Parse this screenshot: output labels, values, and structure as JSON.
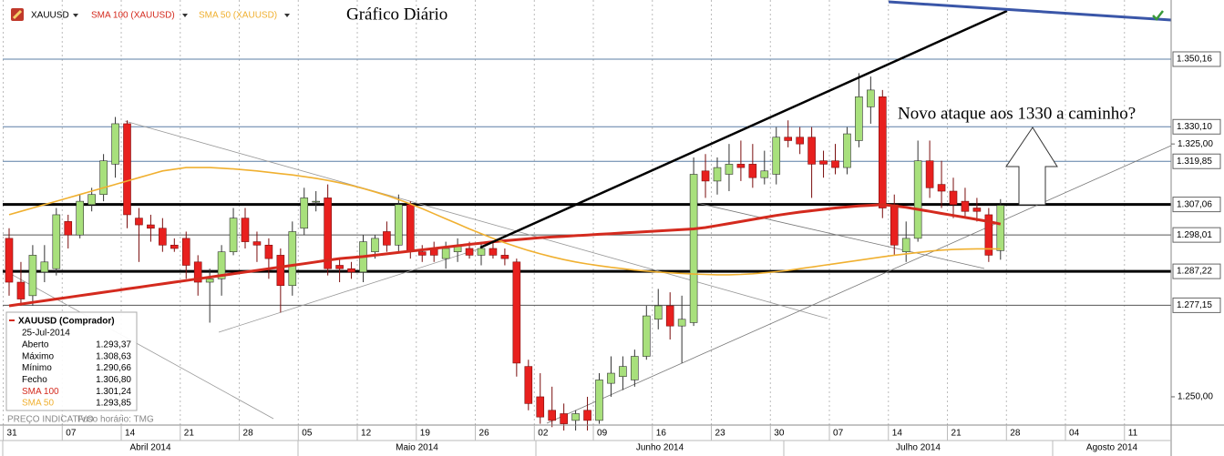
{
  "chart_data": {
    "type": "candlestick",
    "title": "Gráfico Diário",
    "symbol": "XAUUSD",
    "annotation": "Novo ataque aos 1330 a caminho?",
    "categories": [
      "31",
      null,
      null,
      null,
      null,
      "07",
      null,
      null,
      null,
      null,
      "14",
      null,
      null,
      null,
      null,
      "21",
      null,
      null,
      null,
      null,
      "28",
      null,
      null,
      null,
      null,
      "05",
      null,
      null,
      null,
      null,
      "12",
      null,
      null,
      null,
      null,
      "19",
      null,
      null,
      null,
      null,
      "26",
      null,
      null,
      null,
      null,
      "02",
      null,
      null,
      null,
      null,
      "09",
      null,
      null,
      null,
      null,
      "16",
      null,
      null,
      null,
      null,
      "23",
      null,
      null,
      null,
      null,
      "30",
      null,
      null,
      null,
      null,
      "07",
      null,
      null,
      null,
      null,
      "14",
      null,
      null,
      null,
      null,
      "21",
      null,
      null,
      null,
      null,
      "28",
      null,
      null,
      null,
      null,
      "04",
      null,
      null,
      null,
      null,
      "11",
      null,
      null
    ],
    "open": [
      1297,
      1284,
      1280,
      1287,
      1288,
      1302,
      1298,
      1307,
      1310,
      1319,
      1331,
      1303,
      1301,
      1300,
      1295,
      1297,
      1290,
      1284,
      1285,
      1293,
      1303,
      1296,
      1295,
      1292,
      1283,
      1300,
      1308,
      1309,
      1289,
      1288,
      1287,
      1293,
      1299,
      1295,
      1307,
      1293,
      1294,
      1291,
      1293,
      1294,
      1292,
      1294,
      1292,
      1290,
      1259,
      1250,
      1246,
      1245,
      1243,
      1246,
      1243,
      1254,
      1256,
      1255,
      1262,
      1273,
      1277,
      1271,
      1272,
      1317,
      1314,
      1316,
      1319,
      1319,
      1315,
      1316,
      1327,
      1327,
      1327,
      1320,
      1320,
      1318,
      1326,
      1336,
      1339,
      1307,
      1293,
      1297,
      1320,
      1313,
      1311,
      1308,
      1306,
      1304,
      1293.37,
      null,
      null,
      null,
      null,
      null,
      null,
      null,
      null,
      null,
      null,
      null,
      null,
      null
    ],
    "high": [
      1300,
      1290,
      1295,
      1295,
      1306,
      1304,
      1310,
      1312,
      1322,
      1333,
      1332,
      1306,
      1304,
      1303,
      1297,
      1299,
      1292,
      1288,
      1295,
      1306,
      1306,
      1299,
      1297,
      1294,
      1302,
      1312,
      1311,
      1313,
      1291,
      1290,
      1298,
      1298,
      1302,
      1310,
      1308,
      1295,
      1296,
      1296,
      1297,
      1296,
      1296,
      1296,
      1294,
      1291,
      1261,
      1257,
      1253,
      1248,
      1246,
      1250,
      1257,
      1262,
      1262,
      1264,
      1277,
      1282,
      1281,
      1280,
      1321,
      1322,
      1321,
      1325,
      1326,
      1325,
      1323,
      1330,
      1332,
      1330,
      1330,
      1323,
      1325,
      1330,
      1346,
      1345,
      1341,
      1310,
      1302,
      1326,
      1326,
      1320,
      1315,
      1312,
      1309,
      1306,
      1308.63,
      null,
      null,
      null,
      null,
      null,
      null,
      null,
      null,
      null,
      null,
      null,
      null,
      null
    ],
    "low": [
      1280,
      1277,
      1277,
      1284,
      1286,
      1294,
      1297,
      1305,
      1308,
      1315,
      1300,
      1290,
      1296,
      1293,
      1293,
      1285,
      1280,
      1272,
      1280,
      1292,
      1294,
      1290,
      1285,
      1275,
      1280,
      1298,
      1305,
      1286,
      1284,
      1285,
      1284,
      1291,
      1293,
      1293,
      1291,
      1290,
      1290,
      1288,
      1290,
      1291,
      1289,
      1291,
      1289,
      1256,
      1246,
      1242,
      1241,
      1240,
      1240,
      1240,
      1242,
      1250,
      1252,
      1253,
      1261,
      1270,
      1267,
      1260,
      1271,
      1309,
      1310,
      1311,
      1314,
      1312,
      1313,
      1313,
      1324,
      1322,
      1309,
      1315,
      1316,
      1316,
      1324,
      1331,
      1303,
      1292,
      1290,
      1296,
      1309,
      1306,
      1303,
      1303,
      1302,
      1290,
      1290.66,
      null,
      null,
      null,
      null,
      null,
      null,
      null,
      null,
      null,
      null,
      null,
      null,
      null
    ],
    "close": [
      1284,
      1279,
      1292,
      1290,
      1304,
      1298,
      1308,
      1310,
      1320,
      1331,
      1304,
      1301,
      1300,
      1295,
      1294,
      1289,
      1284,
      1285,
      1293,
      1303,
      1296,
      1295,
      1291,
      1283,
      1299,
      1309,
      1308,
      1288,
      1288,
      1287,
      1296,
      1297,
      1295,
      1307,
      1293,
      1292,
      1292,
      1294,
      1295,
      1292,
      1294,
      1292,
      1291,
      1260,
      1248,
      1244,
      1243,
      1242,
      1245,
      1243,
      1255,
      1257,
      1259,
      1262,
      1274,
      1277,
      1271,
      1273,
      1316,
      1314,
      1318,
      1319,
      1318,
      1315,
      1317,
      1327,
      1326,
      1325,
      1319,
      1319,
      1318,
      1328,
      1339,
      1341,
      1306,
      1295,
      1297,
      1320,
      1312,
      1311,
      1307,
      1305,
      1305,
      1292,
      1306.8,
      null,
      null,
      null,
      null,
      null,
      null,
      null,
      null,
      null,
      null,
      null,
      null,
      null
    ],
    "up_color": "#a8e07c",
    "down_color": "#e8201e",
    "series": [
      {
        "name": "SMA 100 (XAUUSD)",
        "color": "#d42a1e",
        "values": [
          1277,
          1277.5,
          1278,
          1278.5,
          1279,
          1279.5,
          1280,
          1280.5,
          1281,
          1281.5,
          1282,
          1282.5,
          1283,
          1283.5,
          1284,
          1284.5,
          1285,
          1285.5,
          1286,
          1286.5,
          1287,
          1287.5,
          1288,
          1288.5,
          1289,
          1289.5,
          1290,
          1290.5,
          1291,
          1291.3,
          1291.6,
          1292,
          1292.4,
          1292.8,
          1293.2,
          1293.6,
          1294,
          1294.4,
          1294.8,
          1295.2,
          1295.6,
          1296,
          1296.3,
          1296.6,
          1296.9,
          1297.2,
          1297.4,
          1297.6,
          1297.8,
          1298,
          1298.2,
          1298.4,
          1298.6,
          1298.8,
          1299,
          1299.2,
          1299.4,
          1299.6,
          1299.8,
          1300.2,
          1300.8,
          1301.4,
          1302,
          1302.6,
          1303.2,
          1303.8,
          1304.3,
          1304.8,
          1305.2,
          1305.6,
          1306,
          1306.3,
          1306.6,
          1306.8,
          1307,
          1306.6,
          1306.2,
          1305.6,
          1305,
          1304.4,
          1303.8,
          1303.2,
          1302.6,
          1302,
          1301.24,
          null,
          null,
          null,
          null,
          null,
          null,
          null,
          null,
          null,
          null,
          null,
          null,
          null
        ]
      },
      {
        "name": "SMA 50 (XAUUSD)",
        "color": "#f0b030",
        "values": [
          1304,
          1305,
          1306,
          1307,
          1308,
          1309,
          1310,
          1311,
          1312,
          1313,
          1314,
          1315,
          1316,
          1317,
          1317.5,
          1318,
          1318,
          1318,
          1317.8,
          1317.6,
          1317.3,
          1317,
          1316.6,
          1316.2,
          1315.8,
          1315.3,
          1314.8,
          1314.2,
          1313.5,
          1312.7,
          1311.8,
          1310.8,
          1309.7,
          1308.5,
          1307.2,
          1305.8,
          1304.3,
          1302.8,
          1301.3,
          1299.8,
          1298.4,
          1297,
          1295.7,
          1294.5,
          1293.4,
          1292.4,
          1291.5,
          1290.7,
          1290,
          1289.4,
          1288.9,
          1288.4,
          1288,
          1287.6,
          1287.3,
          1287,
          1286.8,
          1286.6,
          1286.4,
          1286.3,
          1286.2,
          1286.2,
          1286.3,
          1286.5,
          1286.8,
          1287.1,
          1287.5,
          1288,
          1288.5,
          1289,
          1289.5,
          1290,
          1290.5,
          1291,
          1291.5,
          1292,
          1292.4,
          1292.8,
          1293.2,
          1293.5,
          1293.7,
          1293.8,
          1293.9,
          1293.9,
          1293.85,
          null,
          null,
          null,
          null,
          null,
          null,
          null,
          null,
          null,
          null,
          null,
          null,
          null
        ]
      }
    ],
    "ylim": [
      1242.7,
      1367.7
    ],
    "yticks": [
      {
        "value": 1325,
        "label": "1.325,00"
      },
      {
        "value": 1250,
        "label": "1.250,00"
      }
    ],
    "levels": [
      {
        "value": 1350.16,
        "label": "1.350,16",
        "color": "#5b7fa6"
      },
      {
        "value": 1330.1,
        "label": "1.330,10",
        "color": "#5b7fa6"
      },
      {
        "value": 1319.85,
        "label": "1.319,85",
        "color": "#5b7fa6"
      },
      {
        "value": 1307.06,
        "label": "1.307,06",
        "color": "#000000"
      },
      {
        "value": 1298.01,
        "label": "1.298,01",
        "color": "#555555"
      },
      {
        "value": 1287.22,
        "label": "1.287,22",
        "color": "#000000"
      },
      {
        "value": 1277.15,
        "label": "1.277,15",
        "color": "#555555"
      }
    ],
    "months": [
      "Abril 2014",
      "Maio 2014",
      "Junho 2014",
      "Julho 2014",
      "Agosto 2014"
    ],
    "grid": true
  },
  "info_panel": {
    "title": "XAUUSD (Comprador)",
    "date": "25-Jul-2014",
    "rows": [
      {
        "label": "Aberto",
        "value": "1.293,37"
      },
      {
        "label": "Máximo",
        "value": "1.308,63"
      },
      {
        "label": "Mínimo",
        "value": "1.290,66"
      },
      {
        "label": "Fecho",
        "value": "1.306,80"
      },
      {
        "label": "SMA 100",
        "value": "1.301,24"
      },
      {
        "label": "SMA 50",
        "value": "1.293,85"
      }
    ]
  },
  "footer": [
    "PREÇO INDICATIVO",
    "Fuso horário: TMG"
  ]
}
